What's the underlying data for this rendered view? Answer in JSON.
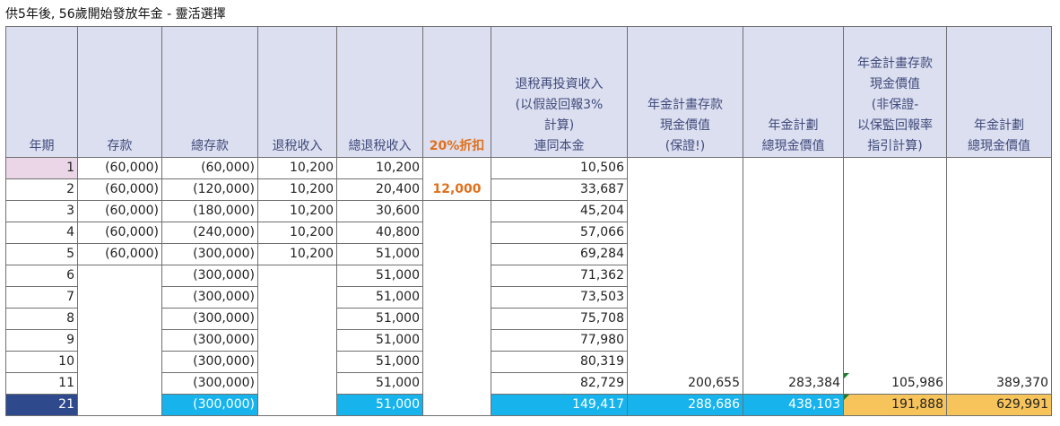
{
  "title": "供5年後, 56歲開始發放年金 - 靈活選擇",
  "headers": [
    {
      "lines": [
        "年期"
      ]
    },
    {
      "lines": [
        "存款"
      ]
    },
    {
      "lines": [
        "總存款"
      ]
    },
    {
      "lines": [
        "退稅收入"
      ]
    },
    {
      "lines": [
        "總退稅收入"
      ]
    },
    {
      "lines": [
        "20%折扣"
      ]
    },
    {
      "lines": [
        "退稅再投資收入",
        "(以假設回報3%",
        "計算)",
        "連同本金"
      ]
    },
    {
      "lines": [
        "年金計畫存款",
        "現金價值",
        "(保證!)"
      ]
    },
    {
      "lines": [
        "年金計劃",
        "總現金價值"
      ]
    },
    {
      "lines": [
        "年金計畫存款",
        "現金價值",
        "(非保證-",
        "以保監回報率",
        "指引計算)"
      ]
    },
    {
      "lines": [
        "年金計劃",
        "總現金價值"
      ]
    }
  ],
  "rows": [
    [
      "1",
      "(60,000)",
      "(60,000)",
      "10,200",
      "10,200",
      "",
      "10,506",
      "",
      "",
      "",
      ""
    ],
    [
      "2",
      "(60,000)",
      "(120,000)",
      "10,200",
      "20,400",
      "12,000",
      "33,687",
      "",
      "",
      "",
      ""
    ],
    [
      "3",
      "(60,000)",
      "(180,000)",
      "10,200",
      "30,600",
      "",
      "45,204",
      "",
      "",
      "",
      ""
    ],
    [
      "4",
      "(60,000)",
      "(240,000)",
      "10,200",
      "40,800",
      "",
      "57,066",
      "",
      "",
      "",
      ""
    ],
    [
      "5",
      "(60,000)",
      "(300,000)",
      "10,200",
      "51,000",
      "",
      "69,284",
      "",
      "",
      "",
      ""
    ],
    [
      "6",
      "",
      "(300,000)",
      "",
      "51,000",
      "",
      "71,362",
      "",
      "",
      "",
      ""
    ],
    [
      "7",
      "",
      "(300,000)",
      "",
      "51,000",
      "",
      "73,503",
      "",
      "",
      "",
      ""
    ],
    [
      "8",
      "",
      "(300,000)",
      "",
      "51,000",
      "",
      "75,708",
      "",
      "",
      "",
      ""
    ],
    [
      "9",
      "",
      "(300,000)",
      "",
      "51,000",
      "",
      "77,980",
      "",
      "",
      "",
      ""
    ],
    [
      "10",
      "",
      "(300,000)",
      "",
      "51,000",
      "",
      "80,319",
      "",
      "",
      "",
      ""
    ],
    [
      "11",
      "",
      "(300,000)",
      "",
      "51,000",
      "",
      "82,729",
      "200,655",
      "283,384",
      "105,986",
      "389,370"
    ],
    [
      "21",
      "",
      "(300,000)",
      "",
      "51,000",
      "",
      "149,417",
      "288,686",
      "438,103",
      "191,888",
      "629,991"
    ]
  ],
  "colors": {
    "header_bg": "#dcdff0",
    "header_text": "#3f4a7a",
    "discount_orange": "#e0701c",
    "row1_pink": "#ead6e6",
    "highlight_navy": "#2f4a8c",
    "highlight_cyan": "#17b3ec",
    "highlight_gold": "#f7c45b"
  }
}
